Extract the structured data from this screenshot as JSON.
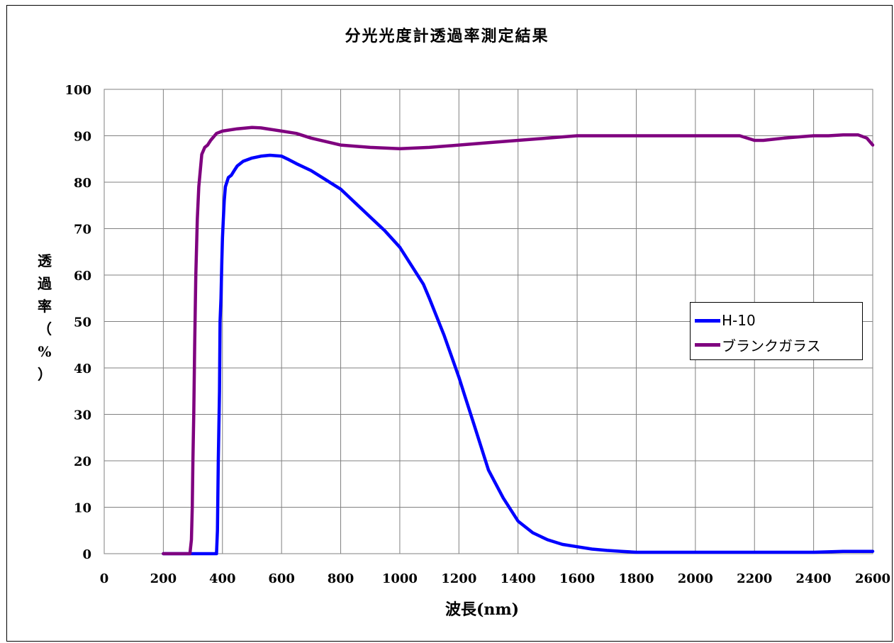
{
  "chart_data": {
    "type": "line",
    "title": "分光光度計透過率測定結果",
    "xlabel": "波長(nm)",
    "ylabel": "透過率（%）",
    "xlim": [
      0,
      2600
    ],
    "ylim": [
      0,
      100
    ],
    "xticks": [
      0,
      200,
      400,
      600,
      800,
      1000,
      1200,
      1400,
      1600,
      1800,
      2000,
      2200,
      2400,
      2600
    ],
    "yticks": [
      0,
      10,
      20,
      30,
      40,
      50,
      60,
      70,
      80,
      90,
      100
    ],
    "grid": true,
    "legend_position": "right",
    "series": [
      {
        "name": "H-10",
        "color": "#0000FF",
        "x": [
          200,
          300,
          380,
          383,
          386,
          390,
          392,
          395,
          398,
          400,
          403,
          406,
          410,
          415,
          420,
          430,
          440,
          450,
          470,
          500,
          530,
          560,
          600,
          620,
          650,
          700,
          750,
          800,
          850,
          900,
          950,
          1000,
          1050,
          1080,
          1100,
          1150,
          1200,
          1220,
          1250,
          1280,
          1300,
          1350,
          1400,
          1450,
          1500,
          1550,
          1600,
          1650,
          1700,
          1750,
          1800,
          1900,
          2000,
          2100,
          2200,
          2300,
          2400,
          2500,
          2600
        ],
        "y": [
          0,
          0,
          0,
          5,
          20,
          35,
          50,
          55,
          63,
          68,
          72,
          76,
          79,
          80,
          81,
          81.5,
          82.5,
          83.5,
          84.5,
          85.2,
          85.6,
          85.8,
          85.6,
          85,
          84,
          82.5,
          80.5,
          78.5,
          75.5,
          72.5,
          69.5,
          66,
          61,
          58,
          55,
          47,
          38,
          34,
          28,
          22,
          18,
          12,
          7,
          4.5,
          3,
          2,
          1.5,
          1,
          0.7,
          0.5,
          0.3,
          0.3,
          0.3,
          0.3,
          0.3,
          0.3,
          0.3,
          0.5,
          0.5
        ]
      },
      {
        "name": "ブランクガラス",
        "color": "#7F007F",
        "x": [
          200,
          290,
          295,
          298,
          300,
          303,
          306,
          310,
          315,
          320,
          330,
          340,
          350,
          360,
          380,
          400,
          450,
          500,
          530,
          600,
          650,
          700,
          800,
          900,
          1000,
          1100,
          1200,
          1300,
          1400,
          1500,
          1600,
          1700,
          1800,
          1900,
          2000,
          2100,
          2150,
          2200,
          2230,
          2300,
          2400,
          2450,
          2500,
          2550,
          2580,
          2600
        ],
        "y": [
          0,
          0,
          3,
          10,
          20,
          30,
          45,
          60,
          72,
          79,
          86,
          87.5,
          88,
          89,
          90.5,
          91,
          91.5,
          91.8,
          91.7,
          91,
          90.5,
          89.5,
          88,
          87.5,
          87.2,
          87.5,
          88,
          88.5,
          89,
          89.5,
          90,
          90,
          90,
          90,
          90,
          90,
          90,
          89,
          89,
          89.5,
          90,
          90,
          90.2,
          90.2,
          89.5,
          88
        ]
      }
    ]
  }
}
